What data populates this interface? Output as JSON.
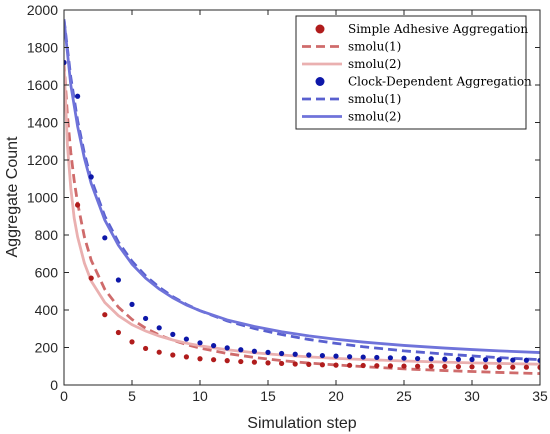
{
  "chart_data": {
    "type": "scatter",
    "xlabel": "Simulation step",
    "ylabel": "Aggregate Count",
    "xlim": [
      0,
      35
    ],
    "ylim": [
      0,
      2000
    ],
    "xticks": [
      "0",
      "5",
      "10",
      "15",
      "20",
      "25",
      "30",
      "35"
    ],
    "yticks": [
      "0",
      "200",
      "400",
      "600",
      "800",
      "1000",
      "1200",
      "1400",
      "1600",
      "1800",
      "2000"
    ],
    "grid": false,
    "legend_position": "top-right",
    "colors": {
      "simple": "#b01c1c",
      "simple_fit1": "#cf6b6b",
      "simple_fit2": "#eab0b0",
      "clock": "#0d17a8",
      "clock_fit1": "#5960cf",
      "clock_fit2": "#6f73da"
    },
    "series": [
      {
        "name": "Simple Adhesive Aggregation",
        "kind": "points",
        "color_key": "simple",
        "x": [
          0,
          1,
          2,
          3,
          4,
          5,
          6,
          7,
          8,
          9,
          10,
          11,
          12,
          13,
          14,
          15,
          16,
          17,
          18,
          19,
          20,
          21,
          22,
          23,
          24,
          25,
          26,
          27,
          28,
          29,
          30,
          31,
          32,
          33,
          34,
          35
        ],
        "y": [
          1720,
          960,
          570,
          375,
          280,
          230,
          195,
          175,
          160,
          150,
          140,
          135,
          130,
          125,
          122,
          118,
          115,
          112,
          110,
          108,
          106,
          105,
          104,
          103,
          102,
          101,
          100,
          100,
          99,
          98,
          97,
          96,
          96,
          95,
          95,
          94
        ]
      },
      {
        "name": "smolu(1)",
        "kind": "dashed",
        "color_key": "simple_fit1",
        "x": [
          0,
          0.25,
          0.5,
          0.75,
          1,
          1.5,
          2,
          3,
          4,
          5,
          6,
          7,
          8,
          9,
          10,
          12,
          14,
          16,
          18,
          20,
          22,
          25,
          28,
          30,
          32,
          35
        ],
        "y": [
          1720,
          1440,
          1240,
          1090,
          970,
          790,
          665,
          510,
          415,
          350,
          303,
          267,
          239,
          216,
          197,
          168,
          147,
          130,
          117,
          107,
          98,
          86,
          77,
          72,
          67,
          61
        ]
      },
      {
        "name": "smolu(2)",
        "kind": "solid",
        "color_key": "simple_fit2",
        "x": [
          0,
          0.25,
          0.5,
          0.75,
          1,
          1.5,
          2,
          3,
          4,
          5,
          6,
          7,
          8,
          9,
          10,
          12,
          14,
          16,
          18,
          20,
          22,
          25,
          28,
          30,
          32,
          35
        ],
        "y": [
          1720,
          1280,
          1050,
          890,
          790,
          650,
          555,
          440,
          370,
          322,
          288,
          261,
          240,
          223,
          209,
          188,
          172,
          160,
          150,
          142,
          136,
          128,
          122,
          118,
          115,
          111
        ]
      },
      {
        "name": "Clock-Dependent Aggregation",
        "kind": "points",
        "color_key": "clock",
        "x": [
          0,
          1,
          2,
          3,
          4,
          5,
          6,
          7,
          8,
          9,
          10,
          11,
          12,
          13,
          14,
          15,
          16,
          17,
          18,
          19,
          20,
          21,
          22,
          23,
          24,
          25,
          26,
          27,
          28,
          29,
          30,
          31,
          32,
          33,
          34,
          35
        ],
        "y": [
          1720,
          1540,
          1110,
          785,
          560,
          430,
          355,
          305,
          270,
          245,
          225,
          210,
          198,
          188,
          180,
          174,
          168,
          164,
          160,
          157,
          154,
          151,
          149,
          147,
          145,
          143,
          141,
          140,
          138,
          137,
          136,
          135,
          134,
          133,
          132,
          131
        ]
      },
      {
        "name": "smolu(1)",
        "kind": "dashed",
        "color_key": "clock_fit1",
        "x": [
          0,
          0.5,
          1,
          1.5,
          2,
          3,
          4,
          5,
          6,
          7,
          8,
          9,
          10,
          12,
          14,
          16,
          18,
          20,
          22,
          25,
          28,
          30,
          32,
          35
        ],
        "y": [
          1950,
          1640,
          1410,
          1235,
          1098,
          900,
          762,
          660,
          582,
          521,
          471,
          430,
          396,
          342,
          301,
          269,
          243,
          222,
          204,
          182,
          165,
          155,
          146,
          135
        ]
      },
      {
        "name": "smolu(2)",
        "kind": "solid",
        "color_key": "clock_fit2",
        "x": [
          0,
          0.5,
          1,
          1.5,
          2,
          3,
          4,
          5,
          6,
          7,
          8,
          9,
          10,
          12,
          14,
          16,
          18,
          20,
          22,
          25,
          28,
          30,
          32,
          35
        ],
        "y": [
          1950,
          1600,
          1380,
          1210,
          1075,
          880,
          745,
          645,
          570,
          512,
          465,
          427,
          396,
          347,
          312,
          284,
          262,
          244,
          229,
          211,
          197,
          189,
          182,
          173
        ]
      }
    ]
  }
}
